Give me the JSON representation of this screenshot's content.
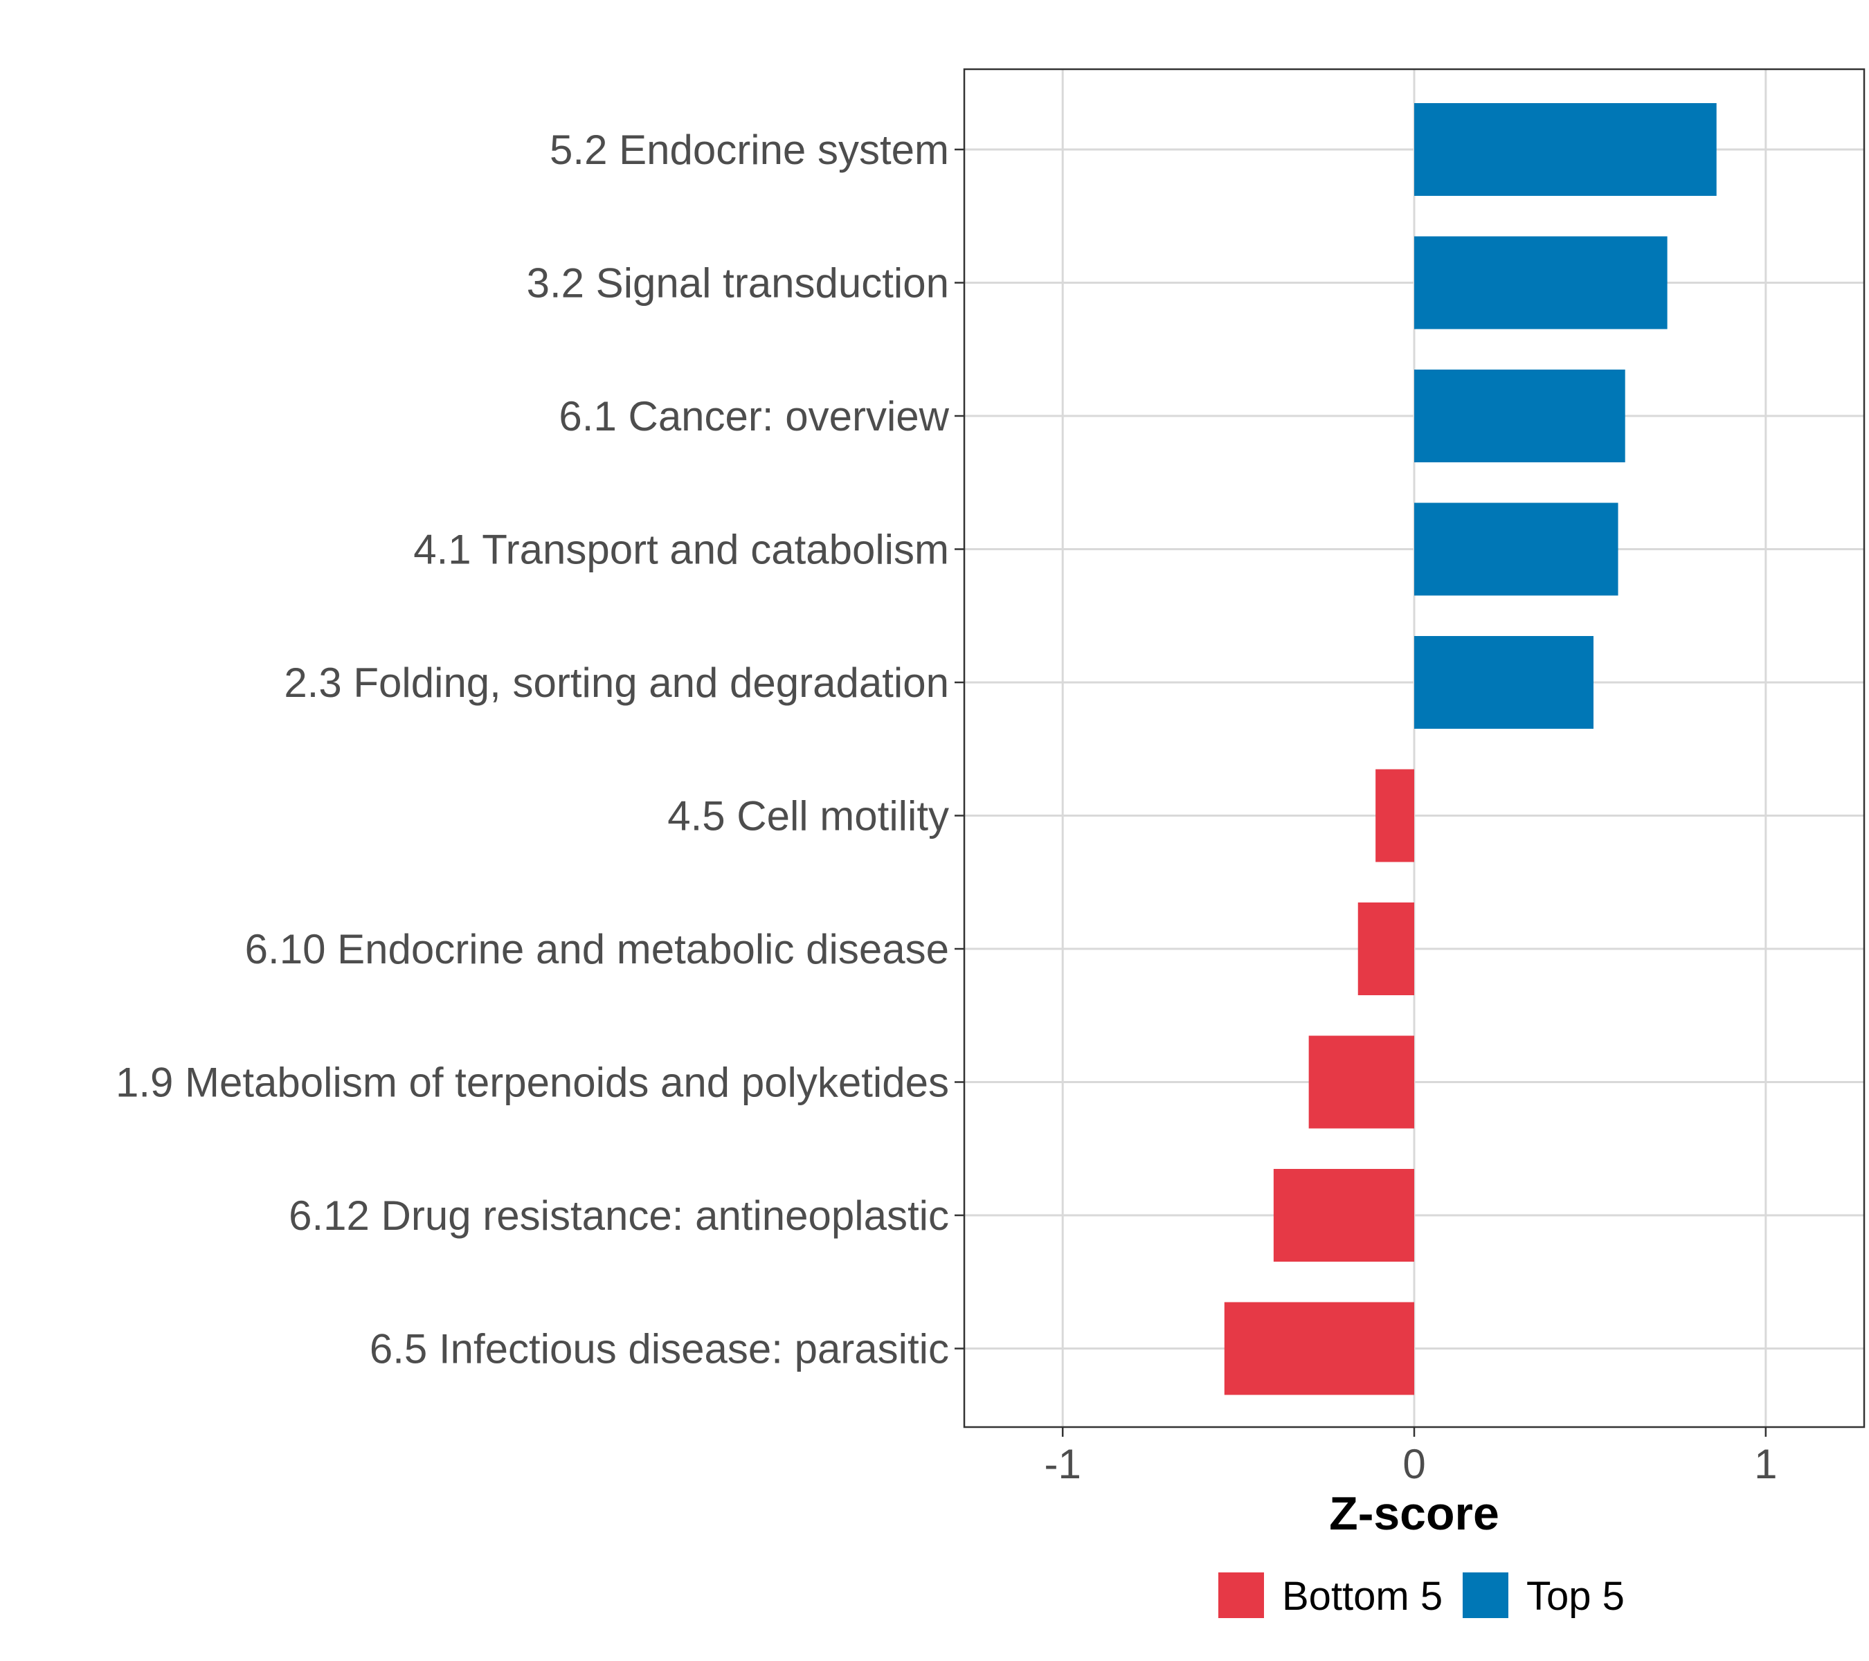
{
  "chart_data": {
    "type": "bar",
    "orientation": "horizontal",
    "categories": [
      "5.2 Endocrine system",
      "3.2 Signal transduction",
      "6.1 Cancer: overview",
      "4.1 Transport and catabolism",
      "2.3 Folding, sorting and degradation",
      "4.5 Cell motility",
      "6.10 Endocrine and metabolic disease",
      "1.9 Metabolism of terpenoids and polyketides",
      "6.12 Drug resistance: antineoplastic",
      "6.5 Infectious disease: parasitic"
    ],
    "values": [
      0.86,
      0.72,
      0.6,
      0.58,
      0.51,
      -0.11,
      -0.16,
      -0.3,
      -0.4,
      -0.54
    ],
    "groups": [
      "Top 5",
      "Top 5",
      "Top 5",
      "Top 5",
      "Top 5",
      "Bottom 5",
      "Bottom 5",
      "Bottom 5",
      "Bottom 5",
      "Bottom 5"
    ],
    "xlabel": "Z-score",
    "ylabel": "",
    "xlim": [
      -1.28,
      1.28
    ],
    "xticks": [
      -1,
      0,
      1
    ],
    "xtick_labels": [
      "-1",
      "0",
      "1"
    ],
    "grid": true,
    "legend": {
      "placement": "bottom",
      "entries": [
        {
          "label": "Bottom 5",
          "color": "#e63946"
        },
        {
          "label": "Top 5",
          "color": "#0077b6"
        }
      ]
    },
    "colors": {
      "Top 5": "#0077b6",
      "Bottom 5": "#e63946"
    }
  }
}
